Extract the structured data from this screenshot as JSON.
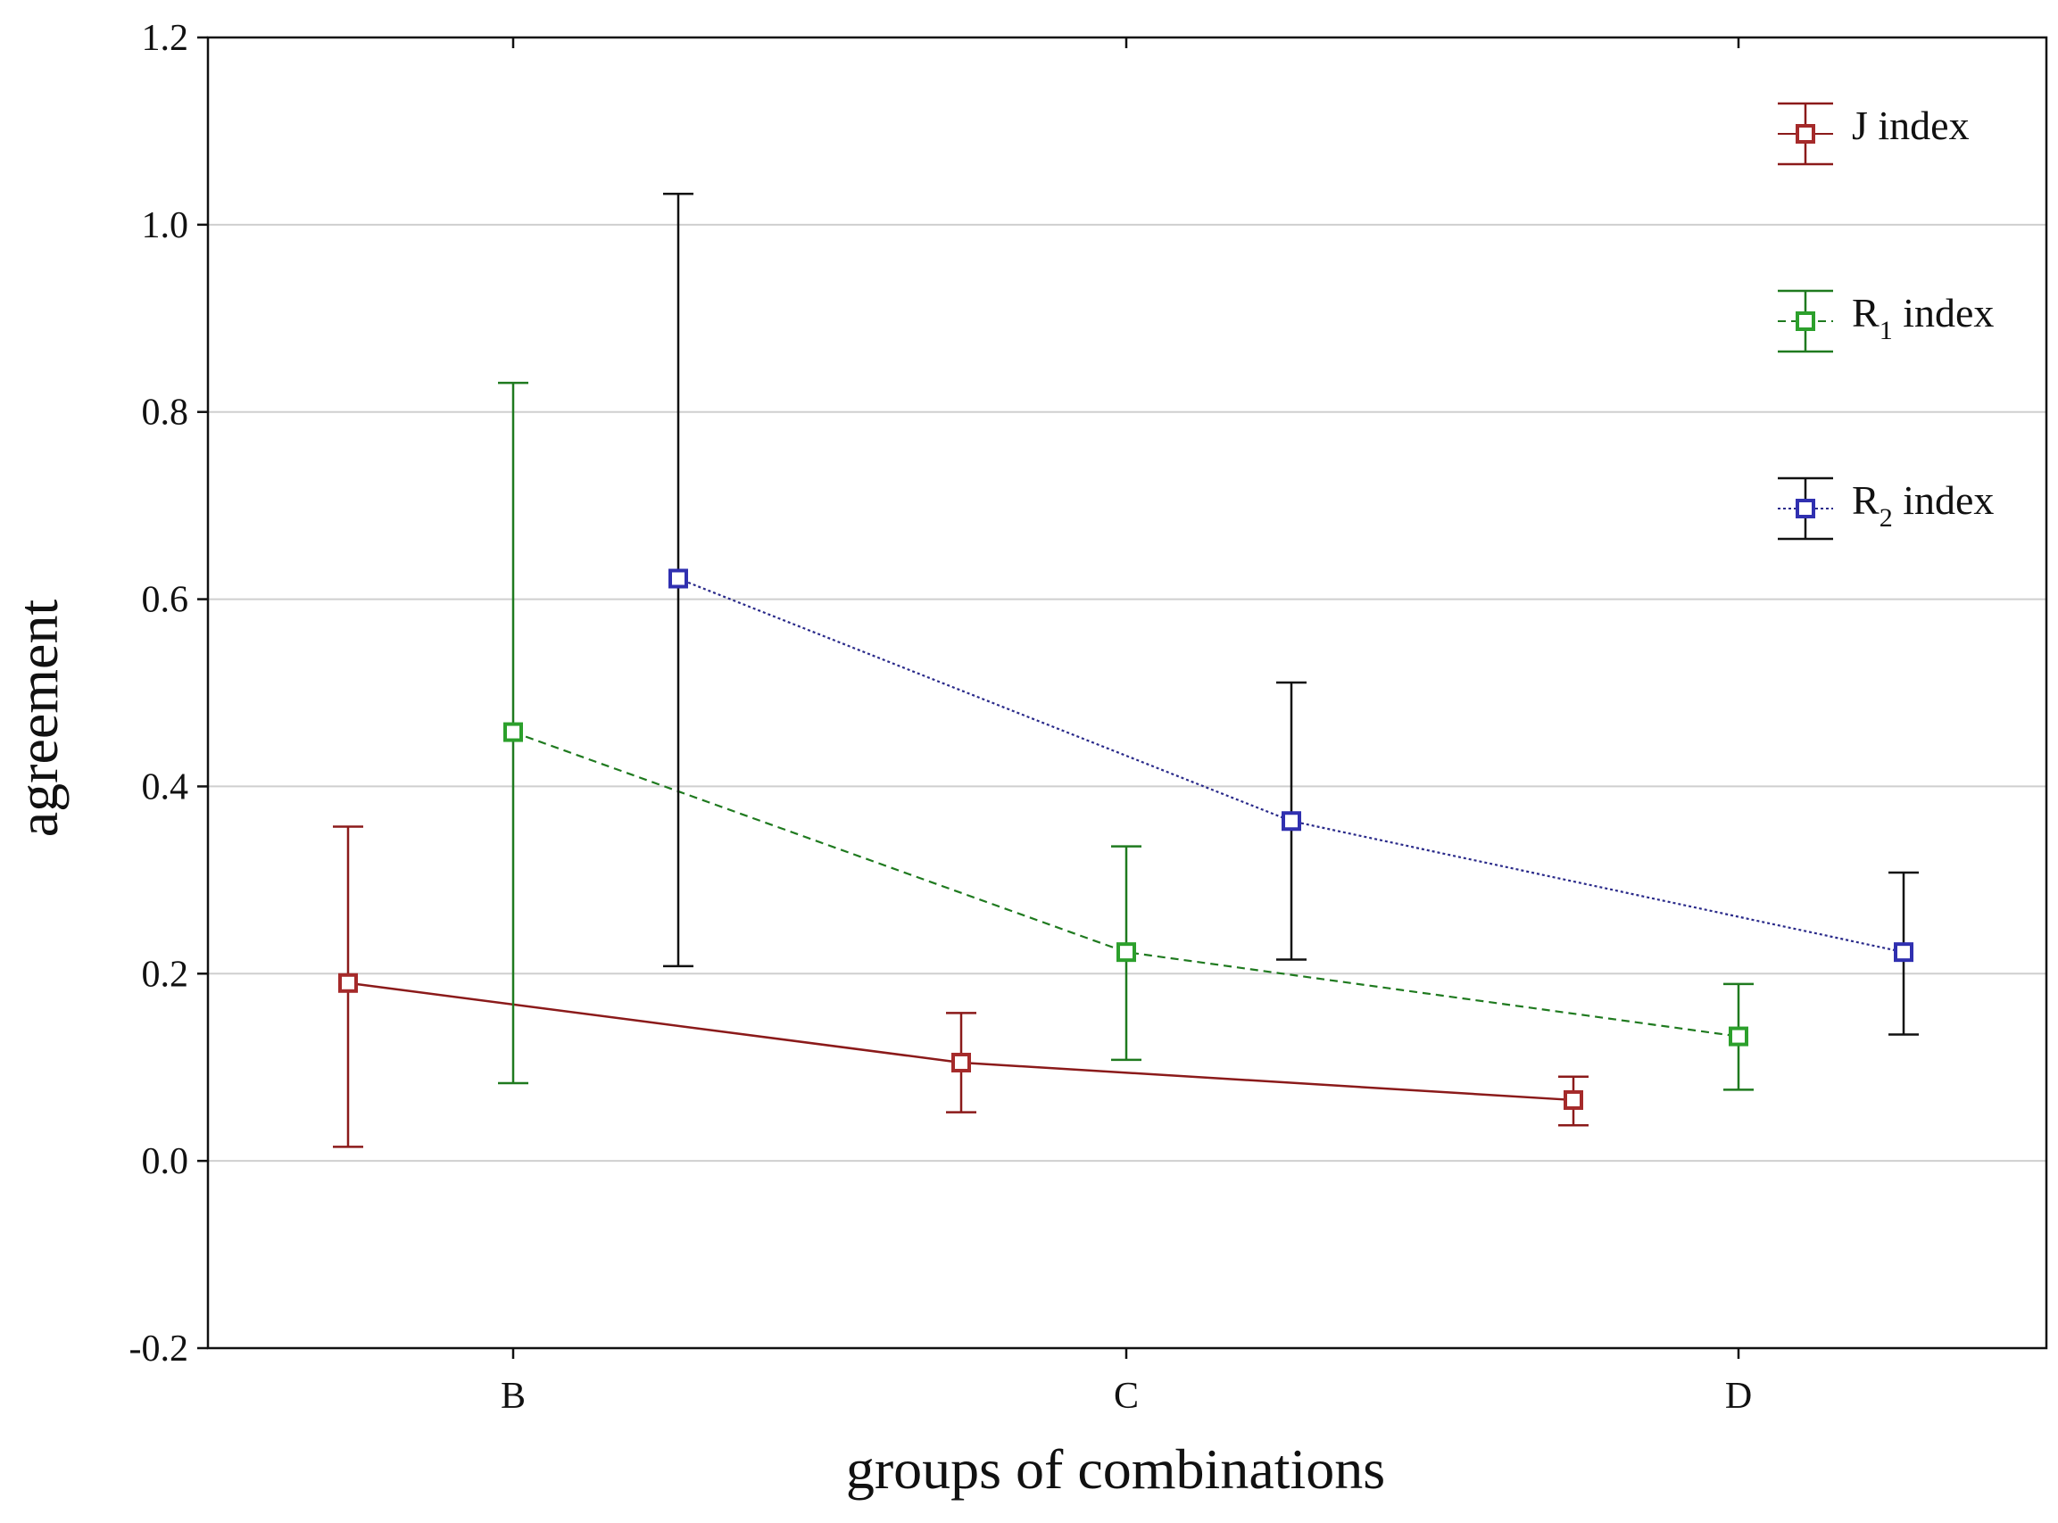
{
  "chart_data": {
    "type": "line",
    "title": "",
    "xlabel": "groups of combinations",
    "ylabel": "agreement",
    "categories": [
      "B",
      "C",
      "D"
    ],
    "ylim": [
      -0.2,
      1.2
    ],
    "yticks": [
      -0.2,
      0.0,
      0.2,
      0.4,
      0.6,
      0.8,
      1.0,
      1.2
    ],
    "ytick_labels": [
      "-0.2",
      "0.0",
      "0.2",
      "0.4",
      "0.6",
      "0.8",
      "1.0",
      "1.2"
    ],
    "grid": "horizontal",
    "legend_position": "top-right",
    "series": [
      {
        "name": "J index",
        "label_main": "J index",
        "label_sub": "",
        "label_tail": "",
        "line_color": "#8b1a1a",
        "marker_color": "#a52a2a",
        "line_style": "solid",
        "values": [
          0.19,
          0.105,
          0.065
        ],
        "err_low": [
          0.015,
          0.052,
          0.038
        ],
        "err_high": [
          0.357,
          0.158,
          0.09
        ]
      },
      {
        "name": "R1 index",
        "label_main": "R",
        "label_sub": "1",
        "label_tail": " index",
        "line_color": "#1f7a1f",
        "marker_color": "#2ca02c",
        "line_style": "dashed",
        "values": [
          0.458,
          0.223,
          0.133
        ],
        "err_low": [
          0.083,
          0.108,
          0.076
        ],
        "err_high": [
          0.831,
          0.336,
          0.189
        ]
      },
      {
        "name": "R2 index",
        "label_main": "R",
        "label_sub": "2",
        "label_tail": " index",
        "line_color": "#2a2a8a",
        "marker_color": "#3030b0",
        "error_bar_color": "#111111",
        "line_style": "dotted",
        "values": [
          0.622,
          0.363,
          0.223
        ],
        "err_low": [
          0.208,
          0.215,
          0.135
        ],
        "err_high": [
          1.033,
          0.511,
          0.308
        ]
      }
    ]
  }
}
